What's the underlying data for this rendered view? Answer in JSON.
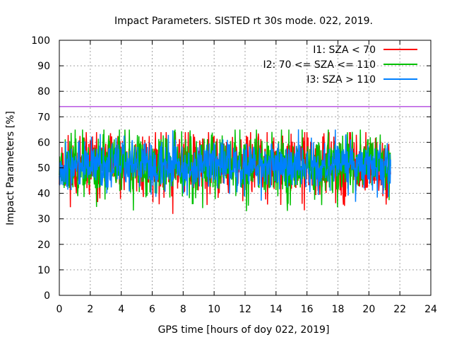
{
  "chart_data": {
    "type": "line",
    "title": "Impact Parameters. SISTED rt 30s mode. 022, 2019.",
    "xlabel": "GPS time [hours of doy 022, 2019]",
    "ylabel": "Impact Parameters [%]",
    "xlim": [
      0,
      24
    ],
    "ylim": [
      0,
      100
    ],
    "xticks": [
      0,
      2,
      4,
      6,
      8,
      10,
      12,
      14,
      16,
      18,
      20,
      22,
      24
    ],
    "yticks": [
      0,
      10,
      20,
      30,
      40,
      50,
      60,
      70,
      80,
      90,
      100
    ],
    "grid": true,
    "legend_position": "top-right",
    "reference_line": {
      "y": 74,
      "color": "#9400d3"
    },
    "series": [
      {
        "name": "I1: SZA < 70",
        "color": "#ff0000",
        "x_start": 0,
        "x_end": 21.4,
        "mean": 51,
        "spread": 6,
        "min": 31,
        "max": 64,
        "points": 900,
        "seed": 11
      },
      {
        "name": "I2: 70 <= SZA <= 110",
        "color": "#00c000",
        "x_start": 0,
        "x_end": 21.4,
        "mean": 51,
        "spread": 6,
        "min": 33,
        "max": 65,
        "points": 900,
        "seed": 23
      },
      {
        "name": "I3: SZA > 110",
        "color": "#0080ff",
        "x_start": 0,
        "x_end": 21.4,
        "mean": 51,
        "spread": 4.5,
        "min": 35,
        "max": 66,
        "points": 900,
        "seed": 37
      }
    ]
  }
}
